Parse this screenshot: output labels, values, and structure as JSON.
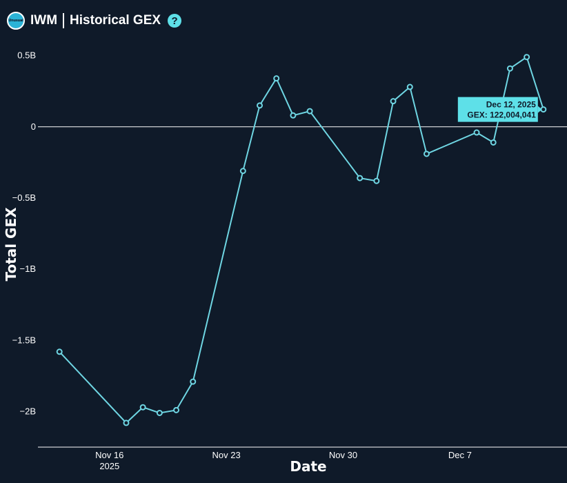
{
  "header": {
    "logo_text": "Unusual",
    "ticker": "IWM",
    "title": "Historical GEX",
    "help_glyph": "?"
  },
  "colors": {
    "background": "#0f1a29",
    "line": "#6fd6e3",
    "tooltip": "#5ee0e8"
  },
  "chart_data": {
    "type": "line",
    "title": "IWM | Historical GEX",
    "xlabel": "Date",
    "ylabel": "Total GEX",
    "ylim": [
      -2.25,
      0.6
    ],
    "yticks": [
      0.5,
      0,
      -0.5,
      -1,
      -1.5,
      -2
    ],
    "ytick_labels": [
      "0.5B",
      "0",
      "−0.5B",
      "−1B",
      "−1.5B",
      "−2B"
    ],
    "xlim": [
      "2025-11-12",
      "2025-12-13"
    ],
    "xticks": [
      {
        "date": "2025-11-16",
        "label": "Nov 16",
        "sublabel": "2025"
      },
      {
        "date": "2025-11-23",
        "label": "Nov 23",
        "sublabel": ""
      },
      {
        "date": "2025-11-30",
        "label": "Nov 30",
        "sublabel": ""
      },
      {
        "date": "2025-12-07",
        "label": "Dec 7",
        "sublabel": ""
      }
    ],
    "series": [
      {
        "x": [
          "2025-11-13",
          "2025-11-17",
          "2025-11-18",
          "2025-11-19",
          "2025-11-20",
          "2025-11-21",
          "2025-11-24",
          "2025-11-25",
          "2025-11-26",
          "2025-11-27",
          "2025-11-28",
          "2025-12-01",
          "2025-12-02",
          "2025-12-03",
          "2025-12-04",
          "2025-12-05",
          "2025-12-08",
          "2025-12-09",
          "2025-12-10",
          "2025-12-11",
          "2025-12-12"
        ],
        "values": [
          -1.58,
          -2.08,
          -1.97,
          -2.01,
          -1.99,
          -1.79,
          -0.31,
          0.15,
          0.34,
          0.08,
          0.11,
          -0.36,
          -0.38,
          0.18,
          0.28,
          -0.19,
          -0.04,
          -0.11,
          0.41,
          0.49,
          0.122
        ]
      }
    ],
    "tooltip": {
      "date": "Dec 12, 2025",
      "text": "GEX: 122,004,041",
      "index": 20
    }
  }
}
